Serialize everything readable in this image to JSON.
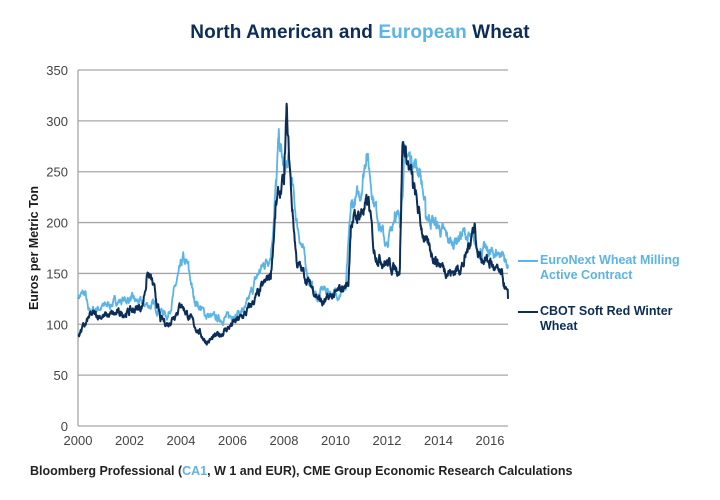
{
  "title": {
    "part1": "North American and ",
    "highlight": "European",
    "part2": " Wheat"
  },
  "colors": {
    "euronext": "#5bb4e5",
    "cbot": "#0c2d57",
    "grid": "#a6a6a6",
    "title": "#0c2d57"
  },
  "source": {
    "part1": "Bloomberg Professional (",
    "highlight": "CA1",
    "part2": ", W 1 and EUR), CME Group Economic Research Calculations"
  },
  "chart_data": {
    "type": "line",
    "title": "North American and European Wheat",
    "xlabel": "",
    "ylabel": "Euros per Metric Ton",
    "xlim": [
      2000,
      2016.7
    ],
    "ylim": [
      0,
      350
    ],
    "xticks": [
      2000,
      2002,
      2004,
      2006,
      2008,
      2010,
      2012,
      2014,
      2016
    ],
    "yticks": [
      0,
      50,
      100,
      150,
      200,
      250,
      300,
      350
    ],
    "grid": "horizontal",
    "legend_position": "right",
    "series": [
      {
        "name": "EuroNext Wheat Milling Active Contract",
        "legend_lines": [
          "EuroNext Wheat Milling",
          "Active Contract"
        ],
        "color": "#5bb4e5",
        "x": [
          2000.0,
          2000.3,
          2000.4,
          2001.0,
          2001.5,
          2002.0,
          2002.5,
          2003.0,
          2003.5,
          2003.9,
          2004.1,
          2004.3,
          2004.5,
          2005.0,
          2005.5,
          2006.0,
          2006.5,
          2007.0,
          2007.5,
          2007.7,
          2007.8,
          2008.0,
          2008.2,
          2008.5,
          2009.0,
          2009.3,
          2009.5,
          2010.0,
          2010.4,
          2010.6,
          2011.0,
          2011.2,
          2011.5,
          2012.0,
          2012.3,
          2012.5,
          2012.7,
          2013.0,
          2013.3,
          2013.5,
          2014.0,
          2014.5,
          2015.0,
          2015.5,
          2016.0,
          2016.5,
          2016.7
        ],
        "y": [
          128,
          130,
          112,
          118,
          122,
          125,
          120,
          118,
          108,
          148,
          165,
          155,
          125,
          108,
          105,
          108,
          115,
          150,
          170,
          240,
          285,
          250,
          260,
          200,
          140,
          125,
          135,
          130,
          135,
          215,
          230,
          270,
          220,
          175,
          210,
          200,
          270,
          260,
          250,
          210,
          195,
          180,
          190,
          175,
          170,
          170,
          155
        ]
      },
      {
        "name": "CBOT Soft Red Winter Wheat",
        "legend_lines": [
          "CBOT Soft Red Winter",
          "Wheat"
        ],
        "color": "#0c2d57",
        "x": [
          2000.0,
          2000.3,
          2000.5,
          2001.0,
          2001.5,
          2002.0,
          2002.5,
          2002.7,
          2002.9,
          2003.2,
          2003.5,
          2004.0,
          2004.5,
          2005.0,
          2005.5,
          2006.0,
          2006.5,
          2007.0,
          2007.5,
          2007.7,
          2008.0,
          2008.1,
          2008.3,
          2008.5,
          2009.0,
          2009.5,
          2010.0,
          2010.5,
          2010.6,
          2011.0,
          2011.3,
          2011.5,
          2012.0,
          2012.3,
          2012.5,
          2012.6,
          2012.8,
          2013.0,
          2013.3,
          2013.5,
          2014.0,
          2014.5,
          2015.0,
          2015.4,
          2015.5,
          2016.0,
          2016.5,
          2016.7
        ],
        "y": [
          90,
          100,
          110,
          108,
          110,
          112,
          118,
          150,
          140,
          105,
          100,
          120,
          100,
          82,
          90,
          100,
          110,
          130,
          150,
          220,
          240,
          310,
          220,
          160,
          140,
          120,
          130,
          140,
          200,
          210,
          220,
          170,
          160,
          155,
          155,
          280,
          260,
          240,
          200,
          180,
          160,
          150,
          160,
          200,
          170,
          160,
          145,
          125
        ]
      }
    ]
  }
}
